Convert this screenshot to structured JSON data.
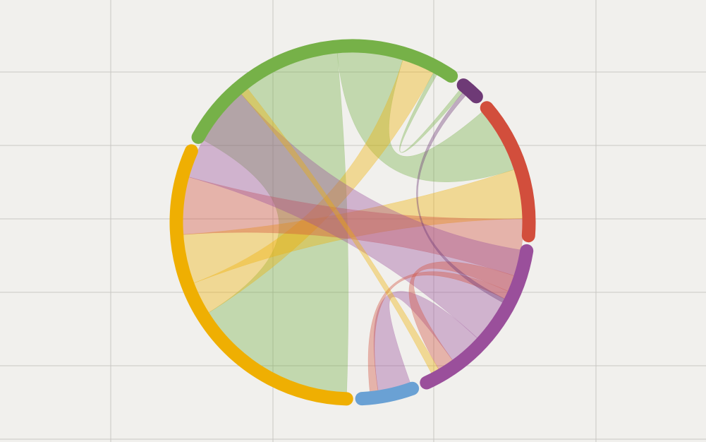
{
  "chart_data": {
    "type": "chord",
    "title": "",
    "grid": true,
    "legend": "none",
    "nodes": [
      {
        "name": "",
        "color": "#efaf02",
        "value": 40
      },
      {
        "name": "",
        "color": "#76b148",
        "value": 34
      },
      {
        "name": "",
        "color": "#6e3a76",
        "value": 2
      },
      {
        "name": "",
        "color": "#d24e3c",
        "value": 16
      },
      {
        "name": "",
        "color": "#9a4f9b",
        "value": 20
      },
      {
        "name": "",
        "color": "#6aa1d4",
        "value": 6
      }
    ],
    "links": [
      {
        "source": 1,
        "target": 0,
        "value": 20
      },
      {
        "source": 1,
        "target": 3,
        "value": 8
      },
      {
        "source": 0,
        "target": 1,
        "value": 4
      },
      {
        "source": 0,
        "target": 3,
        "value": 6
      },
      {
        "source": 3,
        "target": 0,
        "value": 7
      },
      {
        "source": 4,
        "target": 0,
        "value": 12
      },
      {
        "source": 4,
        "target": 5,
        "value": 4
      },
      {
        "source": 3,
        "target": 4,
        "value": 2
      },
      {
        "source": 3,
        "target": 5,
        "value": 1
      },
      {
        "source": 1,
        "target": 2,
        "value": 0.5
      },
      {
        "source": 2,
        "target": 3,
        "value": 0.5
      },
      {
        "source": 0,
        "target": 4,
        "value": 1
      }
    ]
  }
}
